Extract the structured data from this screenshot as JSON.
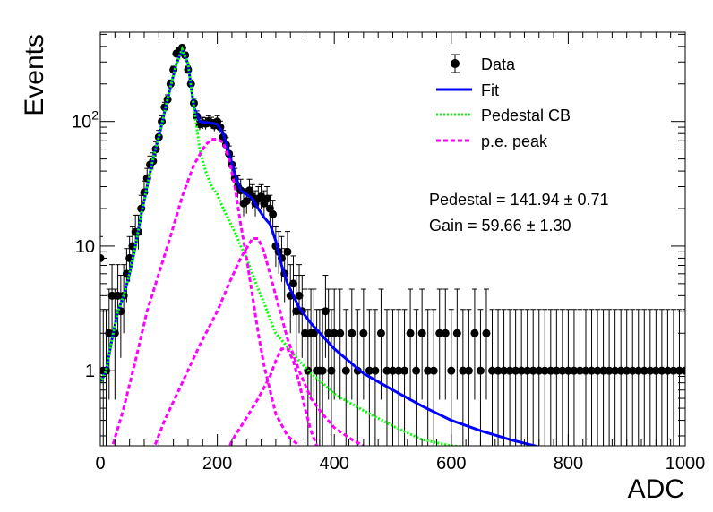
{
  "chart_data": {
    "type": "scatter",
    "title": "",
    "xlabel": "ADC",
    "ylabel": "Events",
    "xlim": [
      0,
      1000
    ],
    "ylim": [
      0.25,
      520
    ],
    "yscale": "log",
    "x_ticks": [
      "0",
      "200",
      "400",
      "600",
      "800",
      "1000"
    ],
    "y_ticks": [
      {
        "value": 1,
        "label": "1"
      },
      {
        "value": 10,
        "label": "10"
      },
      {
        "value": 100,
        "label": "10",
        "sup": "2"
      }
    ],
    "legend": {
      "position": "top-right",
      "entries": [
        {
          "name": "Data",
          "symbol": "marker",
          "color": "#000000"
        },
        {
          "name": "Fit",
          "symbol": "solid-line",
          "color": "#0000ff"
        },
        {
          "name": "Pedestal CB",
          "symbol": "dotted-line",
          "color": "#00ff00"
        },
        {
          "name": "p.e. peak",
          "symbol": "dashed-line",
          "color": "#ff00ff"
        }
      ]
    },
    "annotations": [
      "Pedestal = 141.94 ± 0.71",
      "Gain = 59.66 ± 1.30"
    ],
    "series": [
      {
        "name": "Data",
        "color": "#000000",
        "points": [
          [
            0,
            8
          ],
          [
            5,
            1
          ],
          [
            10,
            1
          ],
          [
            15,
            2
          ],
          [
            20,
            4
          ],
          [
            25,
            2
          ],
          [
            30,
            4
          ],
          [
            35,
            3
          ],
          [
            40,
            4
          ],
          [
            45,
            6
          ],
          [
            50,
            8
          ],
          [
            55,
            10
          ],
          [
            60,
            13
          ],
          [
            65,
            13
          ],
          [
            70,
            20
          ],
          [
            75,
            27
          ],
          [
            80,
            35
          ],
          [
            85,
            45
          ],
          [
            90,
            48
          ],
          [
            95,
            60
          ],
          [
            100,
            75
          ],
          [
            105,
            100
          ],
          [
            110,
            130
          ],
          [
            115,
            150
          ],
          [
            120,
            200
          ],
          [
            125,
            260
          ],
          [
            130,
            350
          ],
          [
            135,
            370
          ],
          [
            140,
            390
          ],
          [
            145,
            340
          ],
          [
            150,
            260
          ],
          [
            155,
            200
          ],
          [
            160,
            140
          ],
          [
            165,
            110
          ],
          [
            170,
            95
          ],
          [
            175,
            97
          ],
          [
            180,
            96
          ],
          [
            185,
            100
          ],
          [
            190,
            97
          ],
          [
            195,
            93
          ],
          [
            200,
            100
          ],
          [
            205,
            90
          ],
          [
            210,
            75
          ],
          [
            215,
            65
          ],
          [
            220,
            55
          ],
          [
            225,
            45
          ],
          [
            230,
            35
          ],
          [
            235,
            30
          ],
          [
            240,
            28
          ],
          [
            245,
            22
          ],
          [
            250,
            23
          ],
          [
            255,
            28
          ],
          [
            260,
            25
          ],
          [
            265,
            22
          ],
          [
            270,
            24
          ],
          [
            275,
            25
          ],
          [
            280,
            22
          ],
          [
            285,
            24
          ],
          [
            290,
            20
          ],
          [
            295,
            18
          ],
          [
            300,
            10
          ],
          [
            305,
            9
          ],
          [
            310,
            8
          ],
          [
            315,
            6
          ],
          [
            320,
            9
          ],
          [
            325,
            4
          ],
          [
            330,
            5
          ],
          [
            335,
            3
          ],
          [
            340,
            4
          ],
          [
            345,
            3
          ],
          [
            350,
            2
          ],
          [
            355,
            1
          ],
          [
            360,
            2
          ],
          [
            365,
            2
          ],
          [
            370,
            1
          ],
          [
            375,
            1
          ],
          [
            380,
            1
          ],
          [
            385,
            3
          ],
          [
            390,
            2
          ],
          [
            395,
            1
          ],
          [
            400,
            2
          ],
          [
            410,
            2
          ],
          [
            420,
            1
          ],
          [
            430,
            2
          ],
          [
            440,
            1
          ],
          [
            450,
            2
          ],
          [
            460,
            1
          ],
          [
            470,
            1
          ],
          [
            480,
            2
          ],
          [
            490,
            1
          ],
          [
            500,
            1
          ],
          [
            510,
            1
          ],
          [
            520,
            1
          ],
          [
            530,
            2
          ],
          [
            540,
            1
          ],
          [
            550,
            2
          ],
          [
            560,
            1
          ],
          [
            570,
            1
          ],
          [
            580,
            2
          ],
          [
            590,
            2
          ],
          [
            600,
            1
          ],
          [
            610,
            2
          ],
          [
            620,
            1
          ],
          [
            630,
            1
          ],
          [
            640,
            2
          ],
          [
            650,
            1
          ],
          [
            660,
            2
          ],
          [
            670,
            1
          ],
          [
            680,
            1
          ],
          [
            690,
            1
          ],
          [
            700,
            1
          ],
          [
            710,
            1
          ],
          [
            720,
            1
          ],
          [
            730,
            1
          ],
          [
            740,
            1
          ],
          [
            750,
            1
          ],
          [
            760,
            1
          ],
          [
            770,
            1
          ],
          [
            780,
            1
          ],
          [
            790,
            1
          ],
          [
            800,
            1
          ],
          [
            810,
            1
          ],
          [
            820,
            1
          ],
          [
            830,
            1
          ],
          [
            840,
            1
          ],
          [
            850,
            1
          ],
          [
            860,
            1
          ],
          [
            870,
            1
          ],
          [
            880,
            1
          ],
          [
            890,
            1
          ],
          [
            900,
            1
          ],
          [
            910,
            1
          ],
          [
            920,
            1
          ],
          [
            930,
            1
          ],
          [
            940,
            1
          ],
          [
            950,
            1
          ],
          [
            960,
            1
          ],
          [
            970,
            1
          ],
          [
            980,
            1
          ],
          [
            990,
            1
          ],
          [
            1000,
            1
          ]
        ]
      },
      {
        "name": "Fit",
        "color": "#0000ff",
        "points": [
          [
            0,
            0.8
          ],
          [
            10,
            1.0
          ],
          [
            20,
            1.8
          ],
          [
            30,
            3
          ],
          [
            40,
            4
          ],
          [
            50,
            6
          ],
          [
            60,
            10
          ],
          [
            70,
            18
          ],
          [
            80,
            30
          ],
          [
            90,
            50
          ],
          [
            100,
            75
          ],
          [
            110,
            120
          ],
          [
            120,
            190
          ],
          [
            130,
            290
          ],
          [
            140,
            380
          ],
          [
            150,
            290
          ],
          [
            160,
            130
          ],
          [
            170,
            100
          ],
          [
            180,
            98
          ],
          [
            190,
            97
          ],
          [
            200,
            95
          ],
          [
            210,
            80
          ],
          [
            220,
            55
          ],
          [
            230,
            38
          ],
          [
            240,
            28
          ],
          [
            250,
            26
          ],
          [
            260,
            24
          ],
          [
            270,
            20
          ],
          [
            280,
            17
          ],
          [
            290,
            15
          ],
          [
            300,
            11
          ],
          [
            310,
            7
          ],
          [
            320,
            5
          ],
          [
            330,
            4
          ],
          [
            340,
            3.2
          ],
          [
            360,
            2.4
          ],
          [
            380,
            1.9
          ],
          [
            400,
            1.5
          ],
          [
            450,
            0.95
          ],
          [
            500,
            0.7
          ],
          [
            550,
            0.52
          ],
          [
            600,
            0.4
          ],
          [
            650,
            0.33
          ],
          [
            700,
            0.28
          ],
          [
            750,
            0.245
          ],
          [
            770,
            0.24
          ]
        ]
      },
      {
        "name": "Pedestal CB",
        "color": "#00ff00",
        "points": [
          [
            0,
            0.8
          ],
          [
            10,
            1.0
          ],
          [
            20,
            1.8
          ],
          [
            30,
            3
          ],
          [
            40,
            4
          ],
          [
            50,
            6
          ],
          [
            60,
            10
          ],
          [
            70,
            18
          ],
          [
            80,
            30
          ],
          [
            90,
            50
          ],
          [
            100,
            75
          ],
          [
            110,
            120
          ],
          [
            120,
            190
          ],
          [
            130,
            290
          ],
          [
            140,
            380
          ],
          [
            150,
            290
          ],
          [
            160,
            130
          ],
          [
            170,
            60
          ],
          [
            180,
            40
          ],
          [
            190,
            30
          ],
          [
            200,
            26
          ],
          [
            210,
            20
          ],
          [
            220,
            16
          ],
          [
            230,
            13
          ],
          [
            240,
            10
          ],
          [
            250,
            8
          ],
          [
            260,
            6
          ],
          [
            270,
            4.5
          ],
          [
            280,
            3.5
          ],
          [
            290,
            2.6
          ],
          [
            300,
            2.0
          ],
          [
            320,
            1.55
          ],
          [
            340,
            1.2
          ],
          [
            360,
            0.95
          ],
          [
            380,
            0.8
          ],
          [
            400,
            0.65
          ],
          [
            450,
            0.48
          ],
          [
            500,
            0.36
          ],
          [
            550,
            0.28
          ],
          [
            600,
            0.25
          ],
          [
            650,
            0.24
          ]
        ]
      },
      {
        "name": "p.e. peak",
        "color": "#ff00ff",
        "points": [
          [
            15,
            0.2
          ],
          [
            40,
            0.5
          ],
          [
            60,
            1.2
          ],
          [
            80,
            3
          ],
          [
            100,
            6
          ],
          [
            120,
            12
          ],
          [
            140,
            25
          ],
          [
            160,
            45
          ],
          [
            180,
            65
          ],
          [
            190,
            72
          ],
          [
            200,
            72
          ],
          [
            210,
            68
          ],
          [
            220,
            50
          ],
          [
            230,
            30
          ],
          [
            240,
            15
          ],
          [
            250,
            8
          ],
          [
            260,
            4
          ],
          [
            270,
            2
          ],
          [
            280,
            1.1
          ],
          [
            290,
            0.7
          ],
          [
            300,
            0.45
          ],
          [
            320,
            0.3
          ],
          [
            340,
            0.25
          ]
        ]
      },
      {
        "name": "p.e. peak",
        "color": "#ff00ff",
        "points": [
          [
            85,
            0.2
          ],
          [
            110,
            0.4
          ],
          [
            140,
            0.8
          ],
          [
            170,
            1.6
          ],
          [
            200,
            3
          ],
          [
            220,
            5
          ],
          [
            240,
            8
          ],
          [
            260,
            11.5
          ],
          [
            270,
            11.5
          ],
          [
            280,
            9
          ],
          [
            290,
            6
          ],
          [
            300,
            4
          ],
          [
            320,
            1.8
          ],
          [
            340,
            1.0
          ],
          [
            360,
            0.6
          ],
          [
            380,
            0.45
          ],
          [
            400,
            0.35
          ],
          [
            430,
            0.28
          ],
          [
            450,
            0.25
          ]
        ]
      },
      {
        "name": "p.e. peak",
        "color": "#ff00ff",
        "points": [
          [
            210,
            0.2
          ],
          [
            230,
            0.3
          ],
          [
            250,
            0.42
          ],
          [
            270,
            0.6
          ],
          [
            290,
            0.9
          ],
          [
            300,
            1.2
          ],
          [
            310,
            1.5
          ],
          [
            320,
            1.5
          ],
          [
            330,
            1.2
          ],
          [
            340,
            0.8
          ],
          [
            350,
            0.5
          ],
          [
            360,
            0.33
          ],
          [
            370,
            0.25
          ]
        ]
      }
    ]
  }
}
